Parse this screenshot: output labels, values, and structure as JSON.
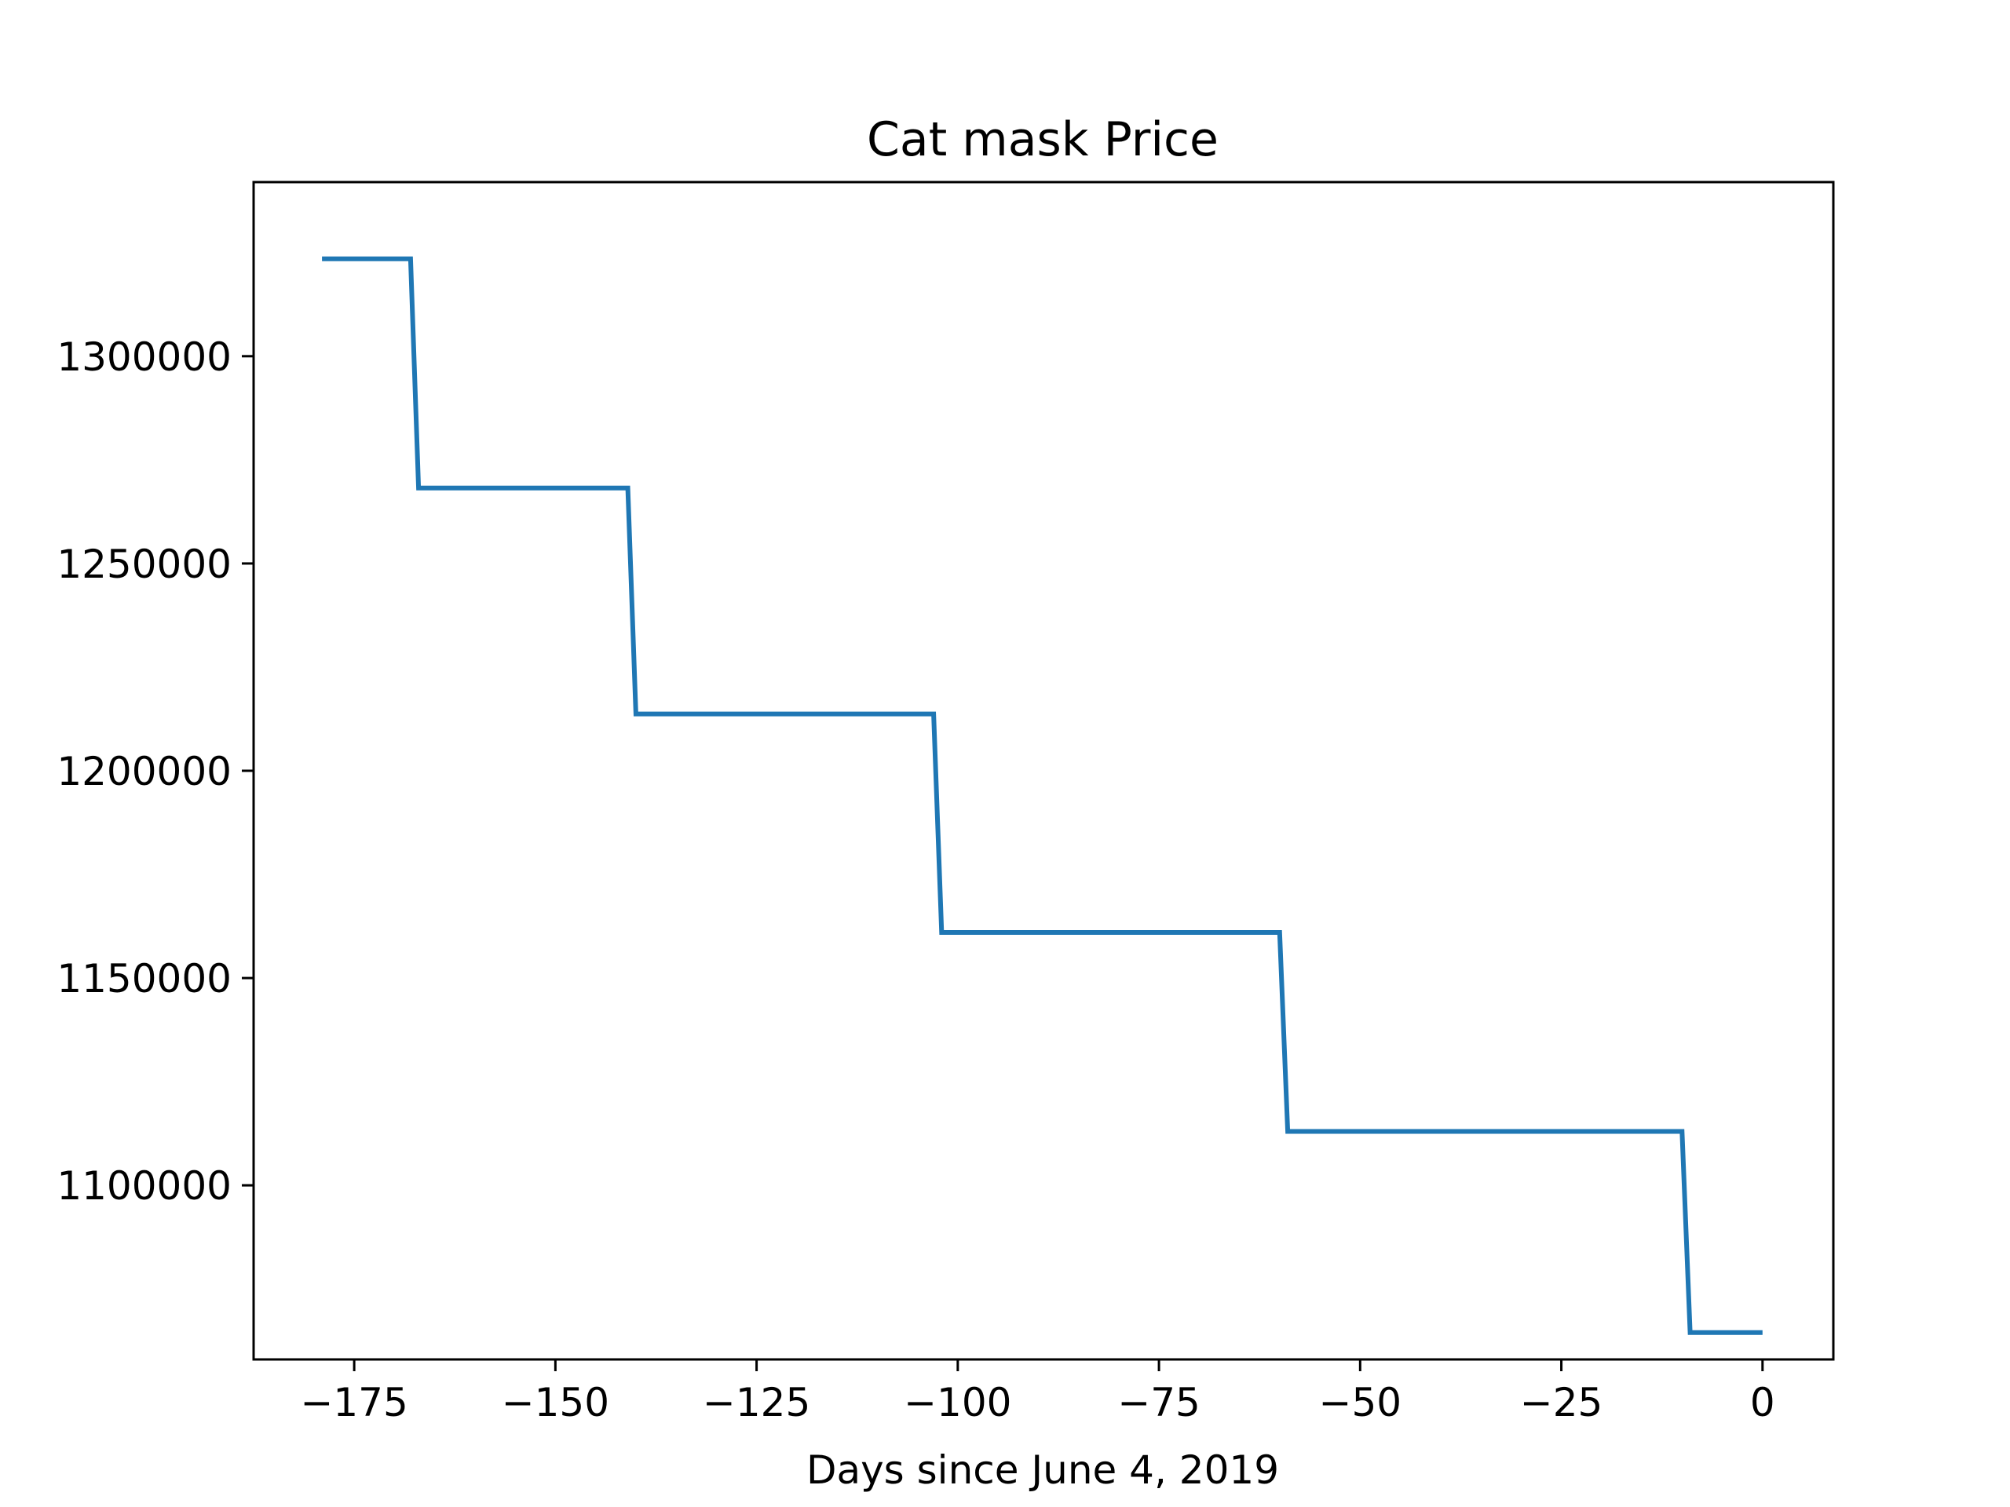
{
  "chart_data": {
    "type": "line",
    "title": "Cat mask Price",
    "xlabel": "Days since June 4, 2019",
    "ylabel": "",
    "x_ticks": [
      -175,
      -150,
      -125,
      -100,
      -75,
      -50,
      -25,
      0
    ],
    "x_tick_labels": [
      "−175",
      "−150",
      "−125",
      "−100",
      "−75",
      "−50",
      "−25",
      "0"
    ],
    "y_ticks": [
      1100000,
      1150000,
      1200000,
      1250000,
      1300000
    ],
    "y_tick_labels": [
      "1100000",
      "1150000",
      "1200000",
      "1250000",
      "1300000"
    ],
    "xlim": [
      -187.5,
      8.8
    ],
    "ylim": [
      1058000,
      1342000
    ],
    "grid": false,
    "series": [
      {
        "color": "#1f77b4",
        "x": [
          -179,
          -168,
          -167,
          -141,
          -140,
          -103,
          -102,
          -60,
          -59,
          -10,
          -9,
          0
        ],
        "y": [
          1323500,
          1323500,
          1268200,
          1268200,
          1213700,
          1213700,
          1161000,
          1161000,
          1113000,
          1113000,
          1064500,
          1064500
        ]
      }
    ]
  }
}
